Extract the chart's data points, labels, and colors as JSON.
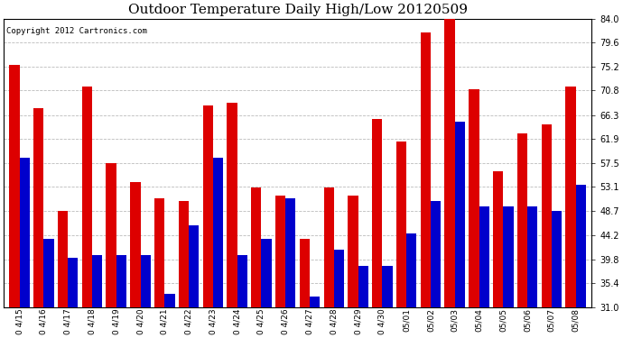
{
  "title": "Outdoor Temperature Daily High/Low 20120509",
  "copyright": "Copyright 2012 Cartronics.com",
  "dates": [
    "0 4/15",
    "0 4/16",
    "0 4/17",
    "0 4/18",
    "0 4/19",
    "0 4/20",
    "0 4/21",
    "0 4/22",
    "0 4/23",
    "0 4/24",
    "0 4/25",
    "0 4/26",
    "0 4/27",
    "0 4/28",
    "0 4/29",
    "0 4/30",
    "05/01",
    "05/02",
    "05/03",
    "05/04",
    "05/05",
    "05/06",
    "05/07",
    "05/08"
  ],
  "highs": [
    75.5,
    67.5,
    48.7,
    71.5,
    57.5,
    54.0,
    51.0,
    50.5,
    68.0,
    68.5,
    53.0,
    51.5,
    43.5,
    53.0,
    51.5,
    65.5,
    61.5,
    81.5,
    85.0,
    71.0,
    56.0,
    63.0,
    64.5,
    71.5
  ],
  "lows": [
    58.5,
    43.5,
    40.0,
    40.5,
    40.5,
    40.5,
    33.5,
    46.0,
    58.5,
    40.5,
    43.5,
    51.0,
    33.0,
    41.5,
    38.5,
    38.5,
    44.5,
    50.5,
    65.0,
    49.5,
    49.5,
    49.5,
    48.7,
    53.5
  ],
  "high_color": "#dd0000",
  "low_color": "#0000cc",
  "bg_color": "#ffffff",
  "ylim_min": 31.0,
  "ylim_max": 84.0,
  "yticks": [
    31.0,
    35.4,
    39.8,
    44.2,
    48.7,
    53.1,
    57.5,
    61.9,
    66.3,
    70.8,
    75.2,
    79.6,
    84.0
  ],
  "grid_color": "#bbbbbb",
  "title_fontsize": 11,
  "copyright_fontsize": 6.5,
  "bar_bottom": 31.0
}
